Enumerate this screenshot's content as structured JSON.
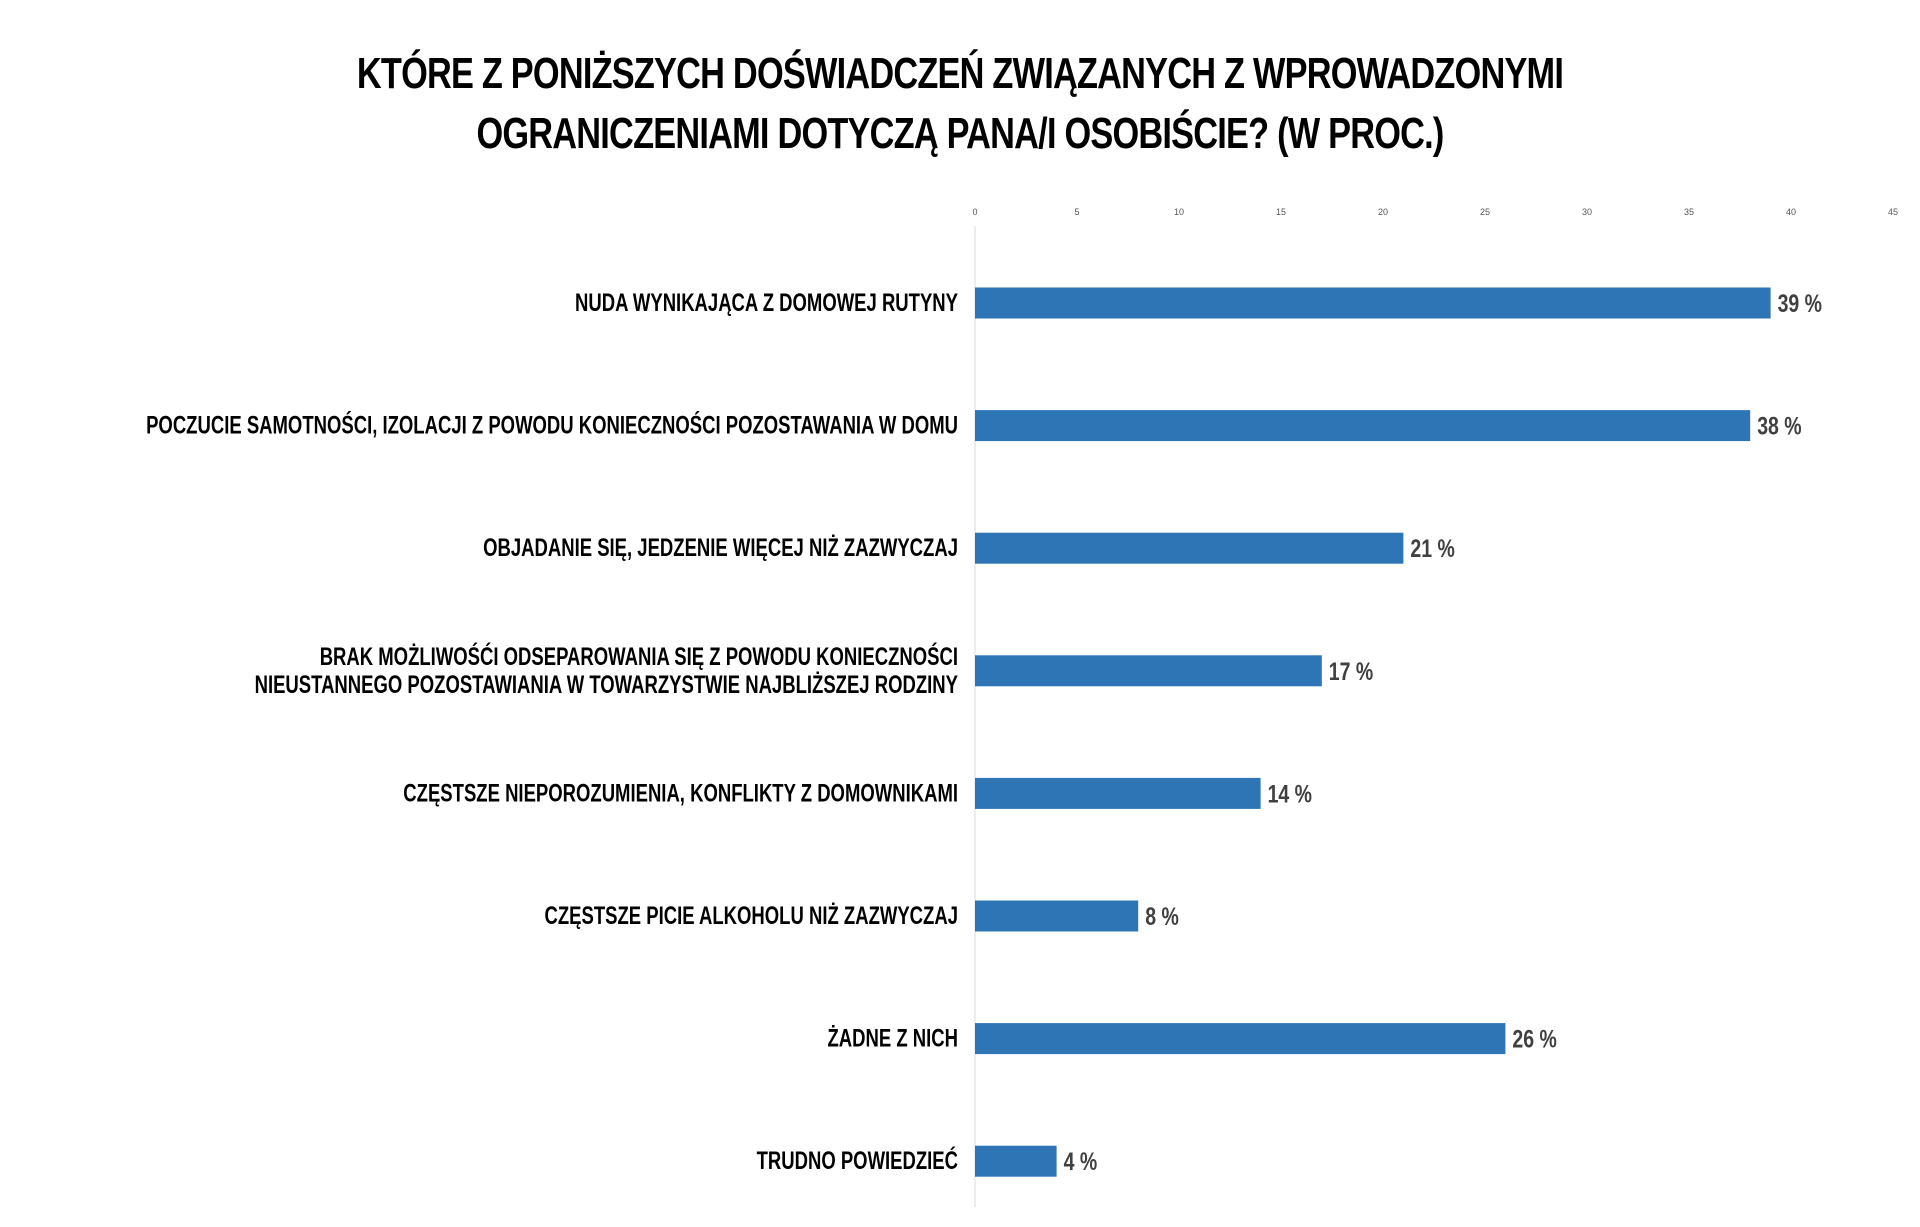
{
  "chart_data": {
    "type": "bar",
    "orientation": "horizontal",
    "title_lines": [
      "KTÓRE Z PONIŻSZYCH DOŚWIADCZEŃ ZWIĄZANYCH Z WPROWADZONYMI",
      "OGRANICZENIAMI DOTYCZĄ PANA/I OSOBIŚCIE? (W PROC.)"
    ],
    "categories": [
      [
        "NUDA WYNIKAJĄCA Z DOMOWEJ RUTYNY"
      ],
      [
        "POCZUCIE SAMOTNOŚCI, IZOLACJI Z POWODU KONIECZNOŚCI POZOSTAWANIA W DOMU"
      ],
      [
        "OBJADANIE SIĘ, JEDZENIE WIĘCEJ NIŻ ZAZWYCZAJ"
      ],
      [
        "BRAK MOŻLIWOŚĆI ODSEPAROWANIA SIĘ Z POWODU KONIECZNOŚCI",
        "NIEUSTANNEGO POZOSTAWIANIA W TOWARZYSTWIE NAJBLIŻSZEJ RODZINY"
      ],
      [
        "CZĘSTSZE NIEPOROZUMIENIA, KONFLIKTY Z DOMOWNIKAMI"
      ],
      [
        "CZĘSTSZE PICIE ALKOHOLU NIŻ ZAZWYCZAJ"
      ],
      [
        "ŻADNE Z NICH"
      ],
      [
        "TRUDNO POWIEDZIEĆ"
      ]
    ],
    "values": [
      39,
      38,
      21,
      17,
      14,
      8,
      26,
      4
    ],
    "value_labels": [
      "39 %",
      "38 %",
      "21 %",
      "17 %",
      "14 %",
      "8 %",
      "26 %",
      "4 %"
    ],
    "xlim": [
      0,
      45
    ],
    "x_ticks": [
      0,
      5,
      10,
      15,
      20,
      25,
      30,
      35,
      40,
      45
    ],
    "x_tick_labels": [
      "0",
      "5",
      "10",
      "15",
      "20",
      "25",
      "30",
      "35",
      "40",
      "45"
    ],
    "axis_position": "top",
    "grid": false,
    "legend": "none",
    "colors": {
      "bar": "#2E75B6",
      "value_label": "#404040",
      "axis_line": "#D9D9D9",
      "title": "#000000"
    }
  }
}
